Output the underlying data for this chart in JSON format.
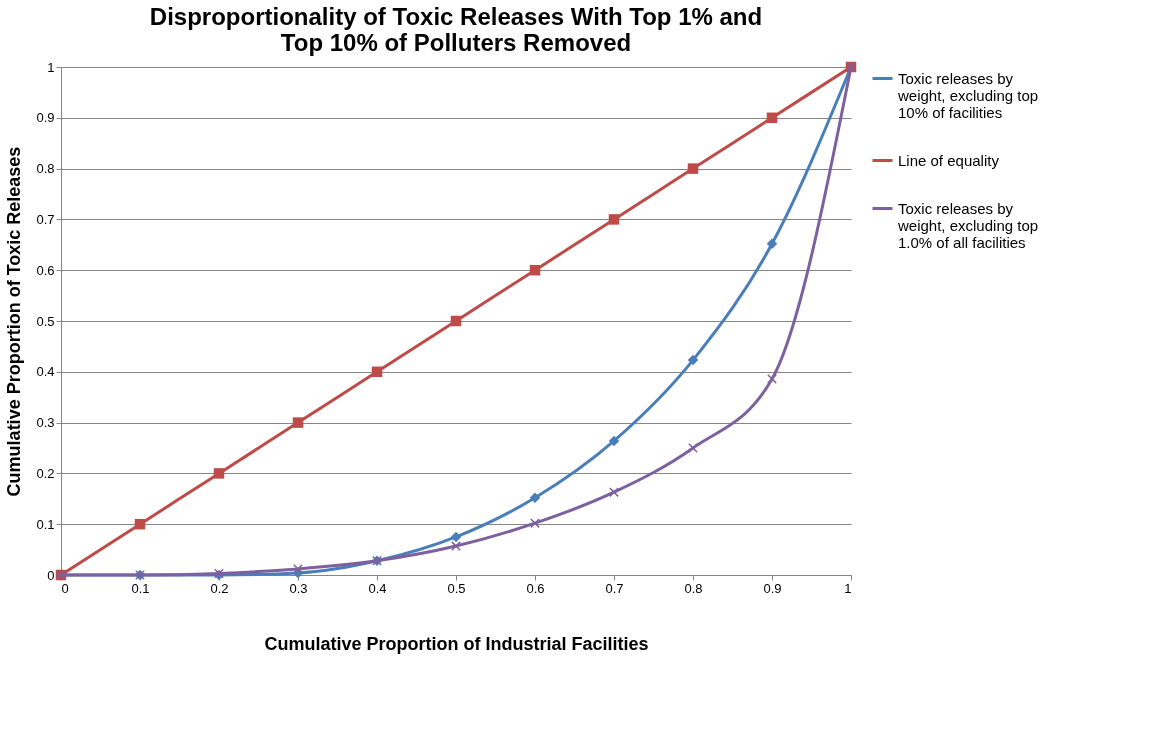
{
  "chart_data": {
    "type": "line",
    "title": "Disproportionality of Toxic Releases With Top 1% and Top 10% of Polluters Removed",
    "xlabel": "Cumulative Proportion of Industrial Facilities",
    "ylabel": "Cumulative Proportion of Toxic Releases",
    "x": [
      0,
      0.1,
      0.2,
      0.3,
      0.4,
      0.5,
      0.6,
      0.7,
      0.8,
      0.9,
      1
    ],
    "series": [
      {
        "name": "Toxic releases by weight, excluding top 10% of facilities",
        "color": "#4a7ebb",
        "marker": "diamond",
        "values": [
          0,
          0,
          0,
          0.004,
          0.028,
          0.075,
          0.152,
          0.264,
          0.423,
          0.652,
          1
        ]
      },
      {
        "name": "Line of equality",
        "color": "#be4b48",
        "marker": "square",
        "values": [
          0,
          0.1,
          0.2,
          0.3,
          0.4,
          0.5,
          0.6,
          0.7,
          0.8,
          0.9,
          1
        ]
      },
      {
        "name": "Toxic releases by weight, excluding top 1.0% of all facilities",
        "color": "#7d60a0",
        "marker": "cross",
        "values": [
          0,
          0,
          0.003,
          0.012,
          0.028,
          0.057,
          0.102,
          0.163,
          0.25,
          0.386,
          1
        ]
      }
    ],
    "xlim": [
      0,
      1
    ],
    "ylim": [
      0,
      1
    ],
    "xticks": [
      0,
      0.1,
      0.2,
      0.3,
      0.4,
      0.5,
      0.6,
      0.7,
      0.8,
      0.9,
      1
    ],
    "yticks": [
      0,
      0.1,
      0.2,
      0.3,
      0.4,
      0.5,
      0.6,
      0.7,
      0.8,
      0.9,
      1
    ],
    "grid": "y",
    "legend": "right",
    "line_style": "solid"
  }
}
